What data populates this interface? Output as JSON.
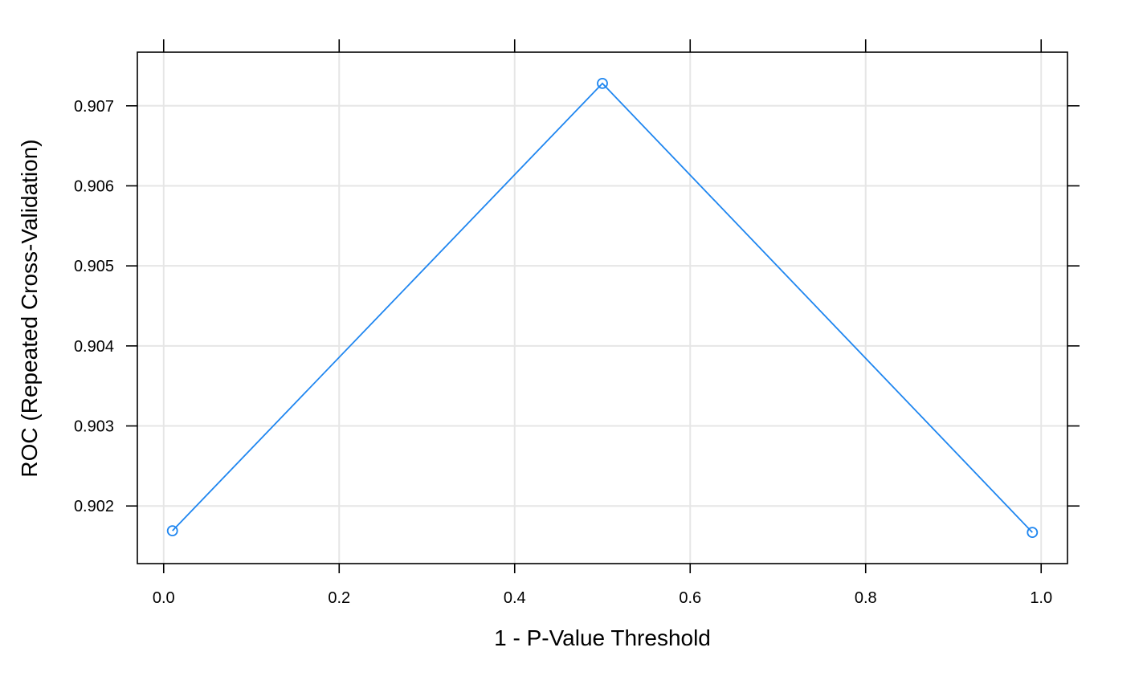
{
  "chart_data": {
    "type": "line",
    "title": "",
    "xlabel": "1 - P-Value Threshold",
    "ylabel": "ROC (Repeated Cross-Validation)",
    "xlim": [
      -0.03,
      1.03
    ],
    "ylim": [
      0.90128,
      0.90767
    ],
    "x_ticks": [
      "0.0",
      "0.2",
      "0.4",
      "0.6",
      "0.8",
      "1.0"
    ],
    "y_ticks": [
      "0.902",
      "0.903",
      "0.904",
      "0.905",
      "0.906",
      "0.907"
    ],
    "grid": true,
    "series": [
      {
        "color": "#1f86f0",
        "marker": "open-circle",
        "x": [
          0.01,
          0.5,
          0.99
        ],
        "y": [
          0.90169,
          0.90728,
          0.90167
        ]
      }
    ]
  }
}
